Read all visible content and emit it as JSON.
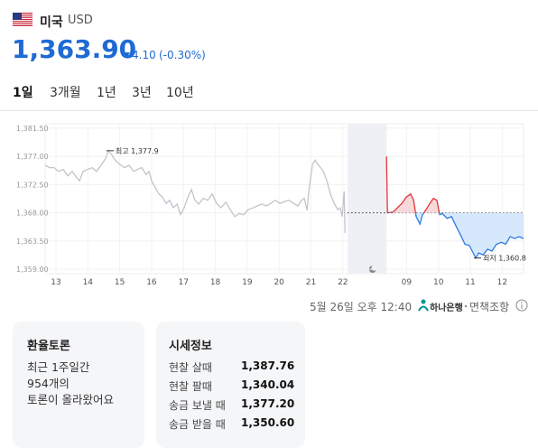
{
  "header": {
    "name": "미국",
    "currency": "USD",
    "price": "1,363.90",
    "change": "4.10",
    "change_pct": "(-0.30%)"
  },
  "tabs": {
    "items": [
      "1일",
      "3개월",
      "1년",
      "3년",
      "10년"
    ],
    "active": 0
  },
  "chart_data": {
    "type": "line",
    "xlim": [
      -0.34,
      14.67
    ],
    "ylim": [
      1358.3,
      1382.2
    ],
    "xticks": [
      {
        "value": 0,
        "label": "13"
      },
      {
        "value": 1,
        "label": "14"
      },
      {
        "value": 2,
        "label": "15"
      },
      {
        "value": 3,
        "label": "16"
      },
      {
        "value": 4,
        "label": "17"
      },
      {
        "value": 5,
        "label": "18"
      },
      {
        "value": 6,
        "label": "19"
      },
      {
        "value": 7,
        "label": "20"
      },
      {
        "value": 8,
        "label": "21"
      },
      {
        "value": 9,
        "label": "22"
      },
      {
        "value": 11,
        "label": "09"
      },
      {
        "value": 12,
        "label": "10"
      },
      {
        "value": 13,
        "label": "11"
      },
      {
        "value": 14,
        "label": "12"
      }
    ],
    "yticks": [
      {
        "value": 1359,
        "label": "1,359.00"
      },
      {
        "value": 1363.5,
        "label": "1,363.50"
      },
      {
        "value": 1368,
        "label": "1,368.00"
      },
      {
        "value": 1372.5,
        "label": "1,372.50"
      },
      {
        "value": 1377,
        "label": "1,377.00"
      },
      {
        "value": 1381.5,
        "label": "1,381.50"
      }
    ],
    "grid": true,
    "shaded_range": [
      9.15,
      10.37
    ],
    "baseline": 1368.0,
    "up_color": "#e2343a",
    "down_color": "#2d7be0",
    "up_fill": "#f8d9d9",
    "down_fill": "#d6e8fb",
    "series": [
      {
        "color": "#c3c3cc",
        "x": [
          -0.34,
          -0.2,
          -0.06,
          0.08,
          0.23,
          0.37,
          0.51,
          0.65,
          0.74,
          0.85,
          0.99,
          1.13,
          1.27,
          1.42,
          1.56,
          1.64,
          1.76,
          1.87,
          2.01,
          2.15,
          2.29,
          2.44,
          2.55,
          2.69,
          2.83,
          2.92,
          3.0,
          3.12,
          3.23,
          3.34,
          3.46,
          3.57,
          3.68,
          3.8,
          3.91,
          4.02,
          4.14,
          4.25,
          4.36,
          4.48,
          4.62,
          4.76,
          4.9,
          5.04,
          5.18,
          5.33,
          5.47,
          5.61,
          5.75,
          5.89,
          6.03,
          6.18,
          6.32,
          6.46,
          6.6,
          6.74,
          6.88,
          7.03,
          7.17,
          7.31,
          7.45,
          7.59,
          7.71,
          7.79,
          7.88,
          7.93,
          7.99,
          8.05,
          8.13,
          8.22,
          8.3,
          8.39,
          8.5,
          8.61,
          8.73,
          8.84,
          8.92,
          8.98,
          9.04,
          9.07
        ],
        "values": [
          1375.6,
          1375.2,
          1375.2,
          1374.6,
          1374.9,
          1373.9,
          1374.6,
          1373.6,
          1373.1,
          1374.6,
          1374.9,
          1375.2,
          1374.6,
          1375.6,
          1376.7,
          1377.9,
          1377.2,
          1376.3,
          1375.7,
          1375.2,
          1375.6,
          1374.6,
          1374.9,
          1375.2,
          1374.1,
          1374.6,
          1373.1,
          1372.0,
          1371.0,
          1370.5,
          1369.5,
          1370.0,
          1368.8,
          1369.4,
          1367.7,
          1368.8,
          1370.5,
          1371.7,
          1370.0,
          1369.4,
          1370.3,
          1370.0,
          1371.0,
          1369.5,
          1368.8,
          1369.7,
          1368.5,
          1367.4,
          1367.9,
          1367.7,
          1368.5,
          1368.8,
          1369.1,
          1369.4,
          1369.1,
          1369.5,
          1370.0,
          1369.5,
          1369.8,
          1370.0,
          1369.5,
          1369.1,
          1370.0,
          1370.3,
          1368.4,
          1371.4,
          1373.6,
          1375.7,
          1376.4,
          1375.7,
          1375.2,
          1374.6,
          1373.1,
          1371.0,
          1369.5,
          1368.5,
          1368.8,
          1367.4,
          1371.4,
          1364.8
        ]
      },
      {
        "x": [
          10.37,
          10.4,
          10.57,
          10.71,
          10.85,
          10.99,
          11.13,
          11.22,
          11.3,
          11.42,
          11.5,
          11.61,
          11.73,
          11.84,
          11.95,
          12.04,
          12.12,
          12.27,
          12.41,
          12.55,
          12.69,
          12.83,
          12.97,
          13.17,
          13.26,
          13.4,
          13.54,
          13.68,
          13.82,
          13.97,
          14.11,
          14.25,
          14.39,
          14.53,
          14.67
        ],
        "values": [
          1377.0,
          1368.0,
          1368.1,
          1368.8,
          1369.5,
          1370.5,
          1371.0,
          1370.0,
          1367.4,
          1366.2,
          1367.7,
          1368.5,
          1369.5,
          1370.3,
          1370.0,
          1367.7,
          1367.9,
          1367.1,
          1367.4,
          1365.9,
          1364.5,
          1363.0,
          1362.8,
          1360.8,
          1361.6,
          1361.3,
          1362.2,
          1361.9,
          1363.0,
          1363.3,
          1363.0,
          1364.2,
          1363.9,
          1364.2,
          1363.9
        ]
      }
    ],
    "annotations": [
      {
        "text": "최고 1,377.9",
        "x": 1.64,
        "y": 1377.9
      },
      {
        "text": "최저 1,360.8",
        "x": 13.17,
        "y": 1360.8
      }
    ]
  },
  "footer": {
    "timestamp": "5월 26일 오후 12:40",
    "source": "하나은행",
    "disclaimer": "면책조항"
  },
  "discussion": {
    "title": "환율토론",
    "lines": [
      "최근 1주일간",
      "954개의",
      "토론이 올라왔어요"
    ]
  },
  "quotes": {
    "title": "시세정보",
    "rows": [
      [
        "현찰 살때",
        "1,387.76"
      ],
      [
        "현찰 팔때",
        "1,340.04"
      ],
      [
        "송금 보낼 때",
        "1,377.20"
      ],
      [
        "송금 받을 때",
        "1,350.60"
      ]
    ]
  }
}
